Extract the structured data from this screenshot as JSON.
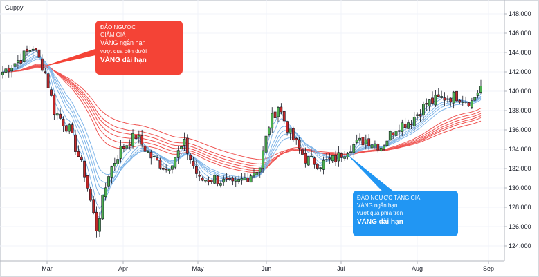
{
  "chart_data": {
    "type": "candlestick",
    "title": "Guppy",
    "y_axis": {
      "side": "right",
      "ylim": [
        123,
        150
      ],
      "ticks": [
        "124.000",
        "126.000",
        "128.000",
        "130.000",
        "132.000",
        "134.000",
        "136.000",
        "138.000",
        "140.000",
        "142.000",
        "144.000",
        "146.000",
        "148.000"
      ]
    },
    "x_axis": {
      "ticks": [
        "Mar",
        "Apr",
        "May",
        "Jun",
        "Jul",
        "Aug",
        "Sep"
      ]
    },
    "grid": true,
    "candle_colors": {
      "up": "#4caf50",
      "down": "#c62828"
    },
    "ema_colors": {
      "short_term": "#7fb5e8",
      "long_term": "#ef5350"
    },
    "price_path": [
      {
        "t": 0,
        "price": 142.0
      },
      {
        "t": 6,
        "price": 143.4
      },
      {
        "t": 10,
        "price": 144.6
      },
      {
        "t": 14,
        "price": 142.0
      },
      {
        "t": 17,
        "price": 138.0
      },
      {
        "t": 22,
        "price": 136.0
      },
      {
        "t": 27,
        "price": 131.5
      },
      {
        "t": 31,
        "price": 125.8
      },
      {
        "t": 35,
        "price": 131.5
      },
      {
        "t": 39,
        "price": 134.0
      },
      {
        "t": 44,
        "price": 135.4
      },
      {
        "t": 49,
        "price": 133.2
      },
      {
        "t": 54,
        "price": 132.0
      },
      {
        "t": 60,
        "price": 134.5
      },
      {
        "t": 65,
        "price": 130.8
      },
      {
        "t": 70,
        "price": 131.0
      },
      {
        "t": 76,
        "price": 130.2
      },
      {
        "t": 81,
        "price": 131.2
      },
      {
        "t": 85,
        "price": 132.2
      },
      {
        "t": 88,
        "price": 136.5
      },
      {
        "t": 91,
        "price": 138.5
      },
      {
        "t": 95,
        "price": 135.5
      },
      {
        "t": 100,
        "price": 133.0
      },
      {
        "t": 105,
        "price": 132.5
      },
      {
        "t": 110,
        "price": 133.0
      },
      {
        "t": 115,
        "price": 134.3
      },
      {
        "t": 120,
        "price": 135.0
      },
      {
        "t": 125,
        "price": 134.3
      },
      {
        "t": 130,
        "price": 136.3
      },
      {
        "t": 135,
        "price": 137.0
      },
      {
        "t": 140,
        "price": 138.7
      },
      {
        "t": 145,
        "price": 139.3
      },
      {
        "t": 150,
        "price": 139.5
      },
      {
        "t": 155,
        "price": 138.9
      },
      {
        "t": 158,
        "price": 140.5
      }
    ],
    "annotations": [
      {
        "lines": [
          "ĐẢO NGƯỢC",
          "GIẢM GIÁ",
          "VÀNG ngắn hạn",
          "vượt qua bên dưới",
          "VÀNG dài hạn"
        ],
        "color": "#f44336"
      },
      {
        "lines": [
          "ĐẢO NGƯỢC TĂNG GIÁ",
          "VÀNG ngắn hạn",
          "vượt qua phía trên",
          "VÀNG dài hạn"
        ],
        "color": "#2196f3"
      }
    ]
  },
  "callouts": {
    "bearish": {
      "l1": "ĐẢO NGƯỢC",
      "l2": "GIẢM GIÁ",
      "l3": "VÀNG ngắn hạn",
      "l4": "vượt qua bên dưới",
      "l5": "VÀNG dài hạn"
    },
    "bullish": {
      "l1": "ĐẢO NGƯỢC TĂNG GIÁ",
      "l2": "VÀNG ngắn hạn",
      "l3": "vượt qua phía trên",
      "l4": "VÀNG dài hạn"
    }
  }
}
